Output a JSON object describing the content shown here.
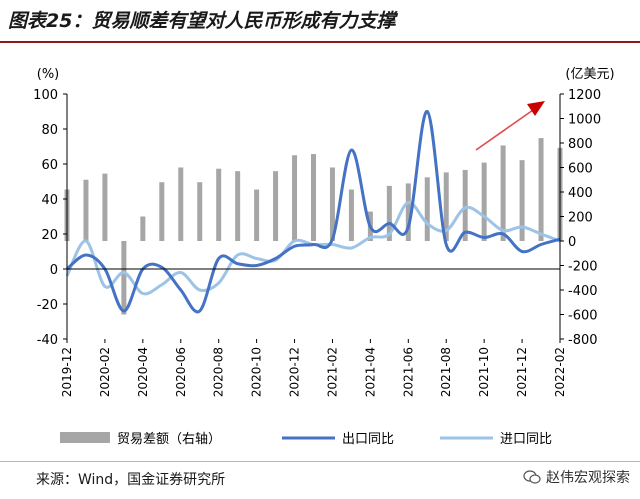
{
  "page": {
    "title": "图表25：贸易顺差有望对人民币形成有力支撑",
    "source": "来源：Wind，国金证券研究所",
    "watermark": "赵伟宏观探索"
  },
  "chart_data": {
    "type": "bar+line",
    "left_axis_label": "(%)",
    "right_axis_label": "(亿美元)",
    "ylim_left": [
      -40,
      100
    ],
    "ylim_right": [
      -800,
      1200
    ],
    "yticks_left": [
      -40,
      -20,
      0,
      20,
      40,
      60,
      80,
      100
    ],
    "yticks_right": [
      -800,
      -600,
      -400,
      -200,
      0,
      200,
      400,
      600,
      800,
      1000,
      1200
    ],
    "x_tick_labels": [
      "2019-12",
      "2020-02",
      "2020-04",
      "2020-06",
      "2020-08",
      "2020-10",
      "2020-12",
      "2021-02",
      "2021-04",
      "2021-06",
      "2021-08",
      "2021-10",
      "2021-12",
      "2022-02"
    ],
    "categories": [
      "2019-12",
      "2020-01",
      "2020-02",
      "2020-03",
      "2020-04",
      "2020-05",
      "2020-06",
      "2020-07",
      "2020-08",
      "2020-09",
      "2020-10",
      "2020-11",
      "2020-12",
      "2021-01",
      "2021-02",
      "2021-03",
      "2021-04",
      "2021-05",
      "2021-06",
      "2021-07",
      "2021-08",
      "2021-09",
      "2021-10",
      "2021-11",
      "2021-12",
      "2022-01",
      "2022-02"
    ],
    "series": [
      {
        "name": "贸易差额（右轴）",
        "type": "bar",
        "axis": "right",
        "color": "#a6a6a6",
        "values": [
          420,
          500,
          550,
          -600,
          200,
          480,
          600,
          480,
          590,
          570,
          420,
          570,
          700,
          710,
          600,
          420,
          240,
          450,
          470,
          520,
          560,
          580,
          640,
          780,
          660,
          840,
          760
        ]
      },
      {
        "name": "出口同比",
        "type": "line",
        "axis": "left",
        "color": "#4472c4",
        "values": [
          0.0,
          8.0,
          0.0,
          -24.0,
          0.0,
          1.0,
          -12.0,
          -24.0,
          6.0,
          3.0,
          2.0,
          6.0,
          13.0,
          14.0,
          17.0,
          68.0,
          24.0,
          26.0,
          24.0,
          90.0,
          14.0,
          21.0,
          18.0,
          20.0,
          10.0,
          14.0,
          17.0
        ]
      },
      {
        "name": "进口同比",
        "type": "line",
        "axis": "left",
        "color": "#9dc3e6",
        "values": [
          -4.0,
          16.0,
          -10.0,
          -2.0,
          -14.0,
          -9.0,
          -2.0,
          -12.0,
          -8.0,
          8.0,
          6.0,
          5.0,
          16.0,
          14.0,
          14.0,
          12.0,
          18.0,
          20.0,
          38.0,
          26.0,
          22.0,
          35.0,
          30.0,
          22.0,
          24.0,
          20.0,
          16.0
        ]
      }
    ]
  }
}
